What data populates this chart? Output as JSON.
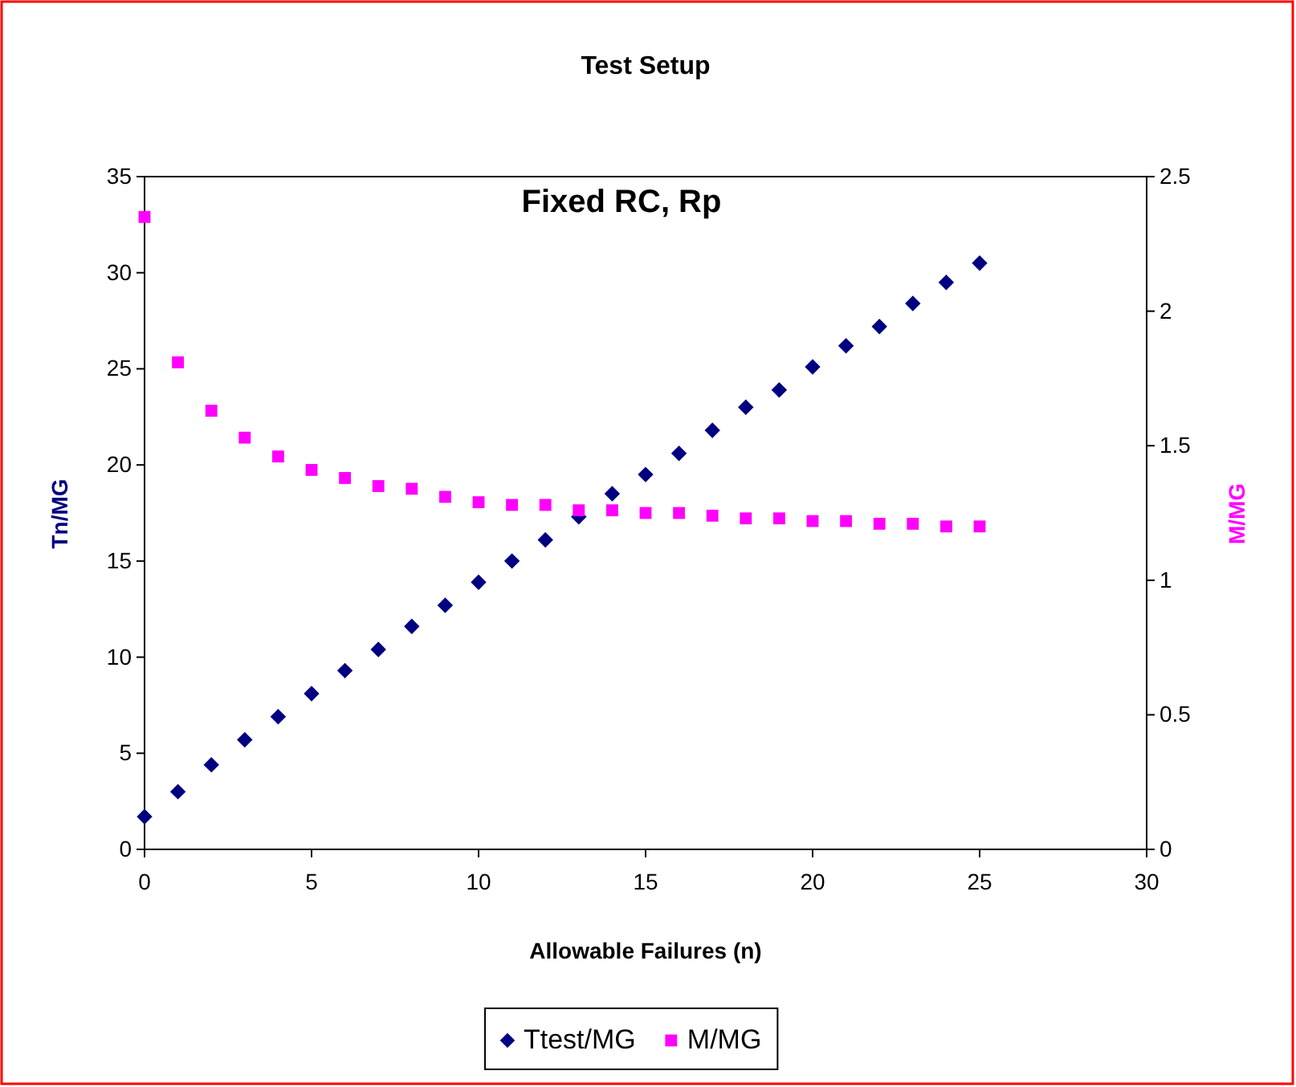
{
  "chart_data": {
    "type": "scatter",
    "title": "Test Setup",
    "xlabel": "Allowable Failures (n)",
    "ylabel": "Tn/MG",
    "y2label": "M/MG",
    "annotations": [
      "Fixed RC, Rp"
    ],
    "x": [
      0,
      1,
      2,
      3,
      4,
      5,
      6,
      7,
      8,
      9,
      10,
      11,
      12,
      13,
      14,
      15,
      16,
      17,
      18,
      19,
      20,
      21,
      22,
      23,
      24,
      25
    ],
    "series": [
      {
        "name": "Ttest/MG",
        "color": "#000080",
        "marker": "diamond",
        "values": [
          1.7,
          3.0,
          4.4,
          5.7,
          6.9,
          8.1,
          9.3,
          10.4,
          11.6,
          12.7,
          13.9,
          15.0,
          16.1,
          17.3,
          18.5,
          19.5,
          20.6,
          21.8,
          23.0,
          23.9,
          25.1,
          26.2,
          27.2,
          28.4,
          29.5,
          30.5
        ]
      },
      {
        "name": "M/MG",
        "color": "#ff00ff",
        "marker": "square",
        "axis": "y2",
        "values": [
          2.35,
          1.81,
          1.63,
          1.53,
          1.46,
          1.41,
          1.38,
          1.35,
          1.34,
          1.31,
          1.29,
          1.28,
          1.28,
          1.26,
          1.26,
          1.25,
          1.25,
          1.24,
          1.23,
          1.23,
          1.22,
          1.22,
          1.21,
          1.21,
          1.2,
          1.2
        ]
      }
    ],
    "xlim": [
      0,
      30
    ],
    "xticks": [
      0,
      5,
      10,
      15,
      20,
      25,
      30
    ],
    "ylim": [
      0,
      35
    ],
    "yticks": [
      0,
      5,
      10,
      15,
      20,
      25,
      30,
      35
    ],
    "y2lim": [
      0,
      2.5
    ],
    "y2ticks": [
      0,
      0.5,
      1,
      1.5,
      2,
      2.5
    ],
    "grid": false,
    "legend": "bottom"
  }
}
